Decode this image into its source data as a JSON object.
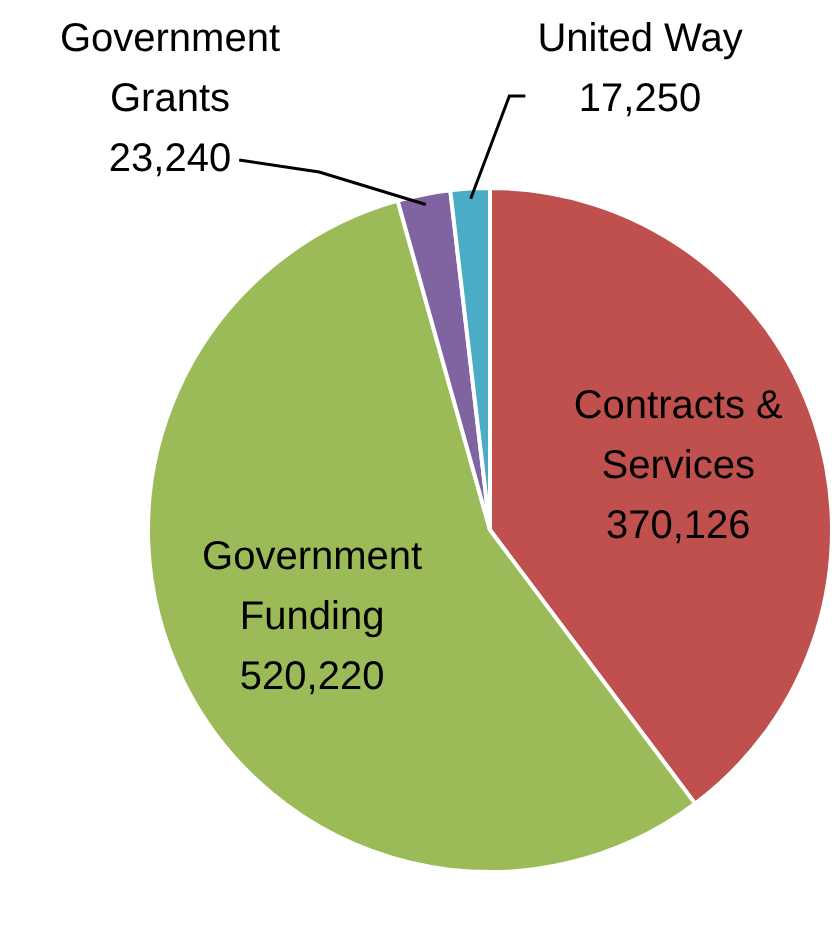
{
  "chart_data": {
    "type": "pie",
    "categories": [
      "Contracts & Services",
      "Government Funding",
      "Government Grants",
      "United Way"
    ],
    "values": [
      370126,
      520220,
      23240,
      17250
    ],
    "colors": [
      "#c0504d",
      "#9bbb59",
      "#8064a2",
      "#4bacc6"
    ],
    "value_labels": [
      "370,126",
      "520,220",
      "23,240",
      "17,250"
    ],
    "legend": false
  }
}
